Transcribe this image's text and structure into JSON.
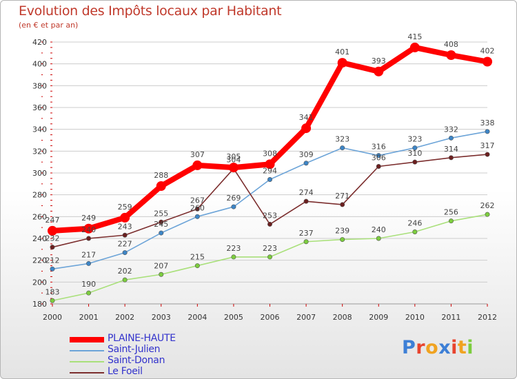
{
  "title": "Evolution des Impôts locaux par Habitant",
  "subtitle": "(en € et par an)",
  "brand": "Proxiti",
  "colors": {
    "frame_border": "#b5b5b5",
    "grid": "#cccccc",
    "axis_tick": "#cc0000"
  },
  "chart_data": {
    "type": "line",
    "title": "Evolution des Impôts locaux par Habitant",
    "subtitle": "(en € et par an)",
    "xlabel": "",
    "ylabel": "",
    "x": [
      "2000",
      "2001",
      "2002",
      "2003",
      "2004",
      "2005",
      "2006",
      "2007",
      "2008",
      "2009",
      "2010",
      "2011",
      "2012"
    ],
    "ylim": [
      180,
      420
    ],
    "yticks": [
      180,
      200,
      220,
      240,
      260,
      280,
      300,
      320,
      340,
      360,
      380,
      400,
      420
    ],
    "grid": "horizontal",
    "legend_position": "bottom-left",
    "series": [
      {
        "name": "PLAINE-HAUTE",
        "color": "#ff0000",
        "point_color": "#ff0000",
        "emphasis": true,
        "values": [
          247,
          249,
          259,
          288,
          307,
          305,
          308,
          341,
          401,
          393,
          415,
          408,
          402
        ]
      },
      {
        "name": "Saint-Julien",
        "color": "#6ca4d8",
        "point_color": "#3d85c6",
        "emphasis": false,
        "values": [
          212,
          217,
          227,
          245,
          260,
          269,
          294,
          309,
          323,
          316,
          323,
          332,
          338
        ]
      },
      {
        "name": "Saint-Donan",
        "color": "#a9e07a",
        "point_color": "#7ccd3e",
        "emphasis": false,
        "values": [
          183,
          190,
          202,
          207,
          215,
          223,
          223,
          237,
          239,
          240,
          246,
          256,
          262
        ]
      },
      {
        "name": "Le Foeil",
        "color": "#7b2d2d",
        "point_color": "#6b1f1f",
        "emphasis": false,
        "values": [
          232,
          240,
          243,
          255,
          267,
          304,
          253,
          274,
          271,
          306,
          310,
          314,
          317
        ]
      }
    ]
  },
  "brand_letter_colors": [
    "#3d7fd6",
    "#e8442e",
    "#f0a321",
    "#3d7fd6",
    "#e8442e",
    "#f0a321",
    "#7ccd3e"
  ]
}
